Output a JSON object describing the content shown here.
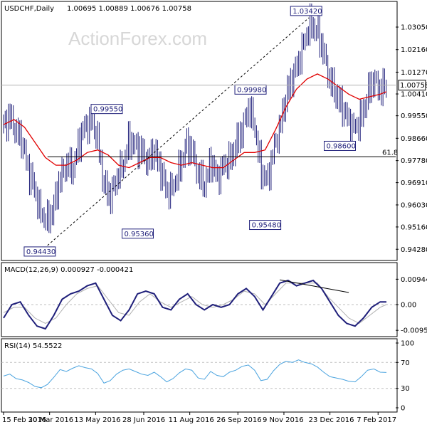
{
  "header": {
    "symbol": "USDCHF,Daily",
    "ohlc": "1.00695 1.00889 1.00676 1.00758"
  },
  "watermark": "ActionForex.com",
  "colors": {
    "price": "#1f1f7a",
    "ma": "#e10000",
    "macd": "#1f1f7a",
    "signal": "#b0b0b0",
    "rsi": "#4aa3df",
    "grid": "#bfbfbf",
    "current_price_line": "#b0b0b0"
  },
  "chart_data": [
    {
      "type": "ohlc",
      "title": "USDCHF,Daily",
      "ylim": [
        0.9395,
        1.0395
      ],
      "y_ticks": [
        "1.03050",
        "1.02160",
        "1.01270",
        "1.00410",
        "0.99550",
        "0.98660",
        "0.97780",
        "0.96910",
        "0.96030",
        "0.95160",
        "0.94280"
      ],
      "x_ticks": [
        "15 Feb 2016",
        "30 Mar 2016",
        "13 May 2016",
        "28 Jun 2016",
        "11 Aug 2016",
        "26 Sep 2016",
        "9 Nov 2016",
        "23 Dec 2016",
        "7 Feb 2017"
      ],
      "current_price": "1.00758",
      "fib_level": "61.8",
      "fib_value": 0.9793,
      "annotations": [
        {
          "label": "0.94430",
          "value": 0.9443
        },
        {
          "label": "0.99550",
          "value": 0.9955
        },
        {
          "label": "0.95360",
          "value": 0.9536
        },
        {
          "label": "0.99980",
          "value": 0.9998
        },
        {
          "label": "0.95480",
          "value": 0.9548
        },
        {
          "label": "1.03420",
          "value": 1.0342
        },
        {
          "label": "0.98600",
          "value": 0.986
        }
      ],
      "close_path": [
        [
          0,
          0.992
        ],
        [
          6,
          0.995
        ],
        [
          12,
          0.989
        ],
        [
          18,
          0.985
        ],
        [
          24,
          0.974
        ],
        [
          30,
          0.966
        ],
        [
          36,
          0.956
        ],
        [
          42,
          0.954
        ],
        [
          48,
          0.96
        ],
        [
          54,
          0.971
        ],
        [
          60,
          0.976
        ],
        [
          66,
          0.974
        ],
        [
          72,
          0.985
        ],
        [
          78,
          0.992
        ],
        [
          84,
          0.993
        ],
        [
          90,
          0.986
        ],
        [
          96,
          0.968
        ],
        [
          102,
          0.964
        ],
        [
          108,
          0.97
        ],
        [
          114,
          0.976
        ],
        [
          120,
          0.986
        ],
        [
          126,
          0.984
        ],
        [
          132,
          0.981
        ],
        [
          138,
          0.977
        ],
        [
          144,
          0.982
        ],
        [
          150,
          0.975
        ],
        [
          156,
          0.965
        ],
        [
          162,
          0.967
        ],
        [
          168,
          0.974
        ],
        [
          174,
          0.984
        ],
        [
          180,
          0.982
        ],
        [
          186,
          0.972
        ],
        [
          192,
          0.968
        ],
        [
          198,
          0.978
        ],
        [
          204,
          0.971
        ],
        [
          210,
          0.975
        ],
        [
          216,
          0.978
        ],
        [
          222,
          0.984
        ],
        [
          228,
          0.99
        ],
        [
          234,
          0.998
        ],
        [
          240,
          0.992
        ],
        [
          246,
          0.974
        ],
        [
          252,
          0.97
        ],
        [
          258,
          0.981
        ],
        [
          264,
          0.991
        ],
        [
          270,
          1.003
        ],
        [
          276,
          1.011
        ],
        [
          282,
          1.016
        ],
        [
          288,
          1.026
        ],
        [
          294,
          1.032
        ],
        [
          300,
          1.029
        ],
        [
          306,
          1.02
        ],
        [
          312,
          1.009
        ],
        [
          318,
          1.004
        ],
        [
          324,
          0.999
        ],
        [
          330,
          0.993
        ],
        [
          336,
          0.99
        ],
        [
          342,
          0.995
        ],
        [
          348,
          1.004
        ],
        [
          354,
          1.01
        ],
        [
          360,
          1.005
        ],
        [
          366,
          1.008
        ]
      ],
      "ma_path": [
        [
          0,
          0.992
        ],
        [
          10,
          0.994
        ],
        [
          20,
          0.991
        ],
        [
          30,
          0.985
        ],
        [
          40,
          0.979
        ],
        [
          50,
          0.976
        ],
        [
          60,
          0.976
        ],
        [
          70,
          0.978
        ],
        [
          80,
          0.981
        ],
        [
          90,
          0.982
        ],
        [
          100,
          0.98
        ],
        [
          110,
          0.976
        ],
        [
          120,
          0.975
        ],
        [
          130,
          0.977
        ],
        [
          140,
          0.979
        ],
        [
          150,
          0.979
        ],
        [
          160,
          0.977
        ],
        [
          170,
          0.976
        ],
        [
          180,
          0.977
        ],
        [
          190,
          0.976
        ],
        [
          200,
          0.975
        ],
        [
          210,
          0.975
        ],
        [
          220,
          0.978
        ],
        [
          230,
          0.981
        ],
        [
          240,
          0.981
        ],
        [
          250,
          0.982
        ],
        [
          260,
          0.99
        ],
        [
          270,
          0.999
        ],
        [
          280,
          1.006
        ],
        [
          290,
          1.01
        ],
        [
          300,
          1.012
        ],
        [
          310,
          1.01
        ],
        [
          320,
          1.007
        ],
        [
          330,
          1.004
        ],
        [
          340,
          1.002
        ],
        [
          350,
          1.003
        ],
        [
          360,
          1.004
        ],
        [
          366,
          1.005
        ]
      ]
    },
    {
      "type": "line",
      "title": "MACD(12,26,9) 0.000927 -0.000421",
      "ylim": [
        -0.0106,
        0.0106
      ],
      "y_ticks": [
        "0.009446",
        "0.00",
        "-0.009588"
      ],
      "macd_path": [
        [
          0,
          -0.005
        ],
        [
          8,
          0.0
        ],
        [
          16,
          0.001
        ],
        [
          24,
          -0.004
        ],
        [
          32,
          -0.008
        ],
        [
          40,
          -0.009
        ],
        [
          48,
          -0.004
        ],
        [
          56,
          0.002
        ],
        [
          64,
          0.004
        ],
        [
          72,
          0.005
        ],
        [
          80,
          0.007
        ],
        [
          88,
          0.008
        ],
        [
          96,
          0.002
        ],
        [
          104,
          -0.004
        ],
        [
          112,
          -0.006
        ],
        [
          120,
          -0.002
        ],
        [
          128,
          0.004
        ],
        [
          136,
          0.005
        ],
        [
          144,
          0.004
        ],
        [
          152,
          -0.001
        ],
        [
          160,
          -0.002
        ],
        [
          168,
          0.002
        ],
        [
          176,
          0.004
        ],
        [
          184,
          0.0
        ],
        [
          192,
          -0.002
        ],
        [
          200,
          0.0
        ],
        [
          208,
          -0.001
        ],
        [
          216,
          0.0
        ],
        [
          224,
          0.004
        ],
        [
          232,
          0.006
        ],
        [
          240,
          0.003
        ],
        [
          248,
          -0.002
        ],
        [
          256,
          0.003
        ],
        [
          264,
          0.008
        ],
        [
          272,
          0.009
        ],
        [
          280,
          0.007
        ],
        [
          288,
          0.008
        ],
        [
          296,
          0.009
        ],
        [
          304,
          0.006
        ],
        [
          312,
          0.001
        ],
        [
          320,
          -0.004
        ],
        [
          328,
          -0.007
        ],
        [
          336,
          -0.008
        ],
        [
          344,
          -0.005
        ],
        [
          352,
          -0.001
        ],
        [
          360,
          0.001
        ],
        [
          366,
          0.001
        ]
      ],
      "signal_path": [
        [
          0,
          -0.003
        ],
        [
          10,
          -0.001
        ],
        [
          20,
          -0.001
        ],
        [
          30,
          -0.005
        ],
        [
          40,
          -0.007
        ],
        [
          50,
          -0.005
        ],
        [
          60,
          0.0
        ],
        [
          70,
          0.004
        ],
        [
          80,
          0.006
        ],
        [
          90,
          0.007
        ],
        [
          100,
          0.002
        ],
        [
          110,
          -0.003
        ],
        [
          120,
          -0.004
        ],
        [
          130,
          0.001
        ],
        [
          140,
          0.004
        ],
        [
          150,
          0.001
        ],
        [
          160,
          -0.001
        ],
        [
          170,
          0.001
        ],
        [
          180,
          0.003
        ],
        [
          190,
          0.0
        ],
        [
          200,
          -0.001
        ],
        [
          210,
          0.0
        ],
        [
          220,
          0.002
        ],
        [
          230,
          0.005
        ],
        [
          240,
          0.004
        ],
        [
          250,
          0.0
        ],
        [
          260,
          0.004
        ],
        [
          270,
          0.008
        ],
        [
          280,
          0.008
        ],
        [
          290,
          0.008
        ],
        [
          300,
          0.008
        ],
        [
          310,
          0.003
        ],
        [
          320,
          -0.001
        ],
        [
          330,
          -0.005
        ],
        [
          340,
          -0.007
        ],
        [
          350,
          -0.004
        ],
        [
          360,
          -0.001
        ],
        [
          366,
          0.0
        ]
      ],
      "divergence_line": [
        [
          264,
          0.0092
        ],
        [
          330,
          0.0045
        ]
      ]
    },
    {
      "type": "line",
      "title": "RSI(14) 54.5522",
      "ylim": [
        0,
        100
      ],
      "y_ticks": [
        "100",
        "70",
        "30",
        "0"
      ],
      "rsi_path": [
        [
          0,
          49
        ],
        [
          6,
          52
        ],
        [
          12,
          45
        ],
        [
          18,
          43
        ],
        [
          24,
          39
        ],
        [
          30,
          33
        ],
        [
          36,
          31
        ],
        [
          42,
          36
        ],
        [
          48,
          47
        ],
        [
          54,
          59
        ],
        [
          60,
          56
        ],
        [
          66,
          61
        ],
        [
          72,
          65
        ],
        [
          78,
          62
        ],
        [
          84,
          60
        ],
        [
          90,
          53
        ],
        [
          96,
          38
        ],
        [
          102,
          42
        ],
        [
          108,
          52
        ],
        [
          114,
          58
        ],
        [
          120,
          60
        ],
        [
          126,
          56
        ],
        [
          132,
          52
        ],
        [
          138,
          50
        ],
        [
          144,
          55
        ],
        [
          150,
          48
        ],
        [
          156,
          40
        ],
        [
          162,
          45
        ],
        [
          168,
          54
        ],
        [
          174,
          60
        ],
        [
          180,
          58
        ],
        [
          186,
          46
        ],
        [
          192,
          44
        ],
        [
          198,
          56
        ],
        [
          204,
          50
        ],
        [
          210,
          48
        ],
        [
          216,
          55
        ],
        [
          222,
          58
        ],
        [
          228,
          64
        ],
        [
          234,
          66
        ],
        [
          240,
          58
        ],
        [
          246,
          42
        ],
        [
          252,
          44
        ],
        [
          258,
          57
        ],
        [
          264,
          67
        ],
        [
          270,
          72
        ],
        [
          276,
          70
        ],
        [
          282,
          74
        ],
        [
          288,
          70
        ],
        [
          294,
          68
        ],
        [
          300,
          63
        ],
        [
          306,
          55
        ],
        [
          312,
          48
        ],
        [
          318,
          46
        ],
        [
          324,
          44
        ],
        [
          330,
          41
        ],
        [
          336,
          40
        ],
        [
          342,
          48
        ],
        [
          348,
          58
        ],
        [
          354,
          60
        ],
        [
          360,
          55
        ],
        [
          366,
          54.55
        ]
      ]
    }
  ]
}
